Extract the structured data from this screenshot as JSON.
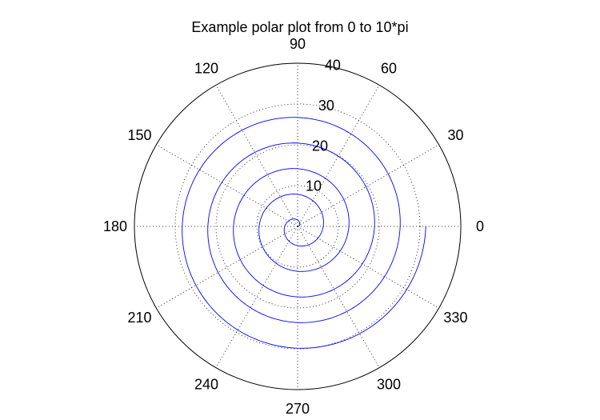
{
  "chart_data": {
    "type": "polar-line",
    "title": "Example polar plot from 0 to 10*pi",
    "theta_range": [
      "0",
      "10*pi"
    ],
    "r_max": 40,
    "r_ticks": [
      10,
      20,
      30,
      40
    ],
    "r_tick_labels": [
      "10",
      "20",
      "30",
      "40"
    ],
    "angle_ticks_deg": [
      0,
      30,
      60,
      90,
      120,
      150,
      180,
      210,
      240,
      270,
      300,
      330
    ],
    "angle_tick_labels": [
      "0",
      "30",
      "60",
      "90",
      "120",
      "150",
      "180",
      "210",
      "240",
      "270",
      "300",
      "330"
    ],
    "grid": true,
    "series": [
      {
        "equation": "r = theta",
        "theta_start": 0,
        "theta_end": 31.4159,
        "color": "#0000ff"
      }
    ]
  },
  "colors": {
    "series": "#0000ff",
    "grid": "#000000",
    "axis": "#000000",
    "background": "#ffffff"
  }
}
